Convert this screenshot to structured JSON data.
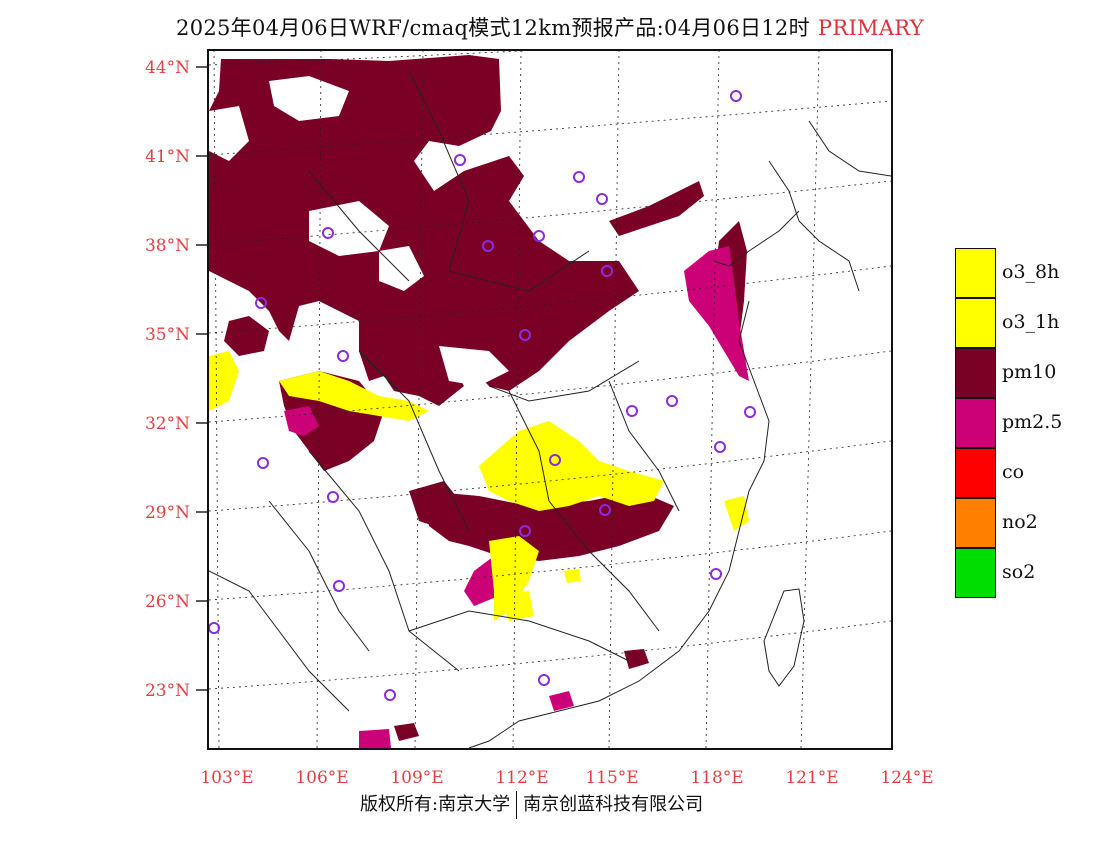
{
  "title": {
    "text": "2025年04月06日WRF/cmaq模式12km预报产品:04月06日12时",
    "tag": "PRIMARY"
  },
  "footer": {
    "left": "版权所有:南京大学",
    "right": "南京创蓝科技有限公司"
  },
  "map": {
    "lat_labels": [
      "44°N",
      "41°N",
      "38°N",
      "35°N",
      "32°N",
      "29°N",
      "26°N",
      "23°N"
    ],
    "lon_labels": [
      "103°E",
      "106°E",
      "109°E",
      "112°E",
      "115°E",
      "118°E",
      "121°E",
      "124°E"
    ],
    "colors": {
      "pm10": "#7a0026",
      "pm25": "#cc0077",
      "o3": "#ffff00",
      "station": "#8a2be2",
      "grid": "#222222",
      "tick_text": "#e04040"
    }
  },
  "legend": [
    {
      "label": "o3_8h",
      "color": "#ffff00"
    },
    {
      "label": "o3_1h",
      "color": "#ffff00"
    },
    {
      "label": "pm10",
      "color": "#7a0026"
    },
    {
      "label": "pm2.5",
      "color": "#cc0077"
    },
    {
      "label": "co",
      "color": "#ff0000"
    },
    {
      "label": "no2",
      "color": "#ff7f00"
    },
    {
      "label": "so2",
      "color": "#00dd00"
    }
  ]
}
